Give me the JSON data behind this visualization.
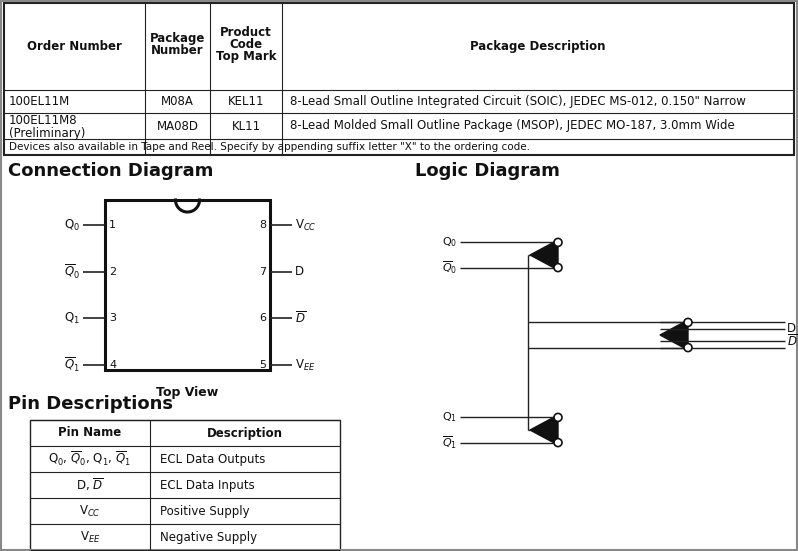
{
  "bg_color": "#ffffff",
  "footnote": "Devices also available in Tape and Reel. Specify by appending suffix letter \"X\" to the ordering code.",
  "conn_title": "Connection Diagram",
  "logic_title": "Logic Diagram",
  "pin_title": "Pin Descriptions"
}
